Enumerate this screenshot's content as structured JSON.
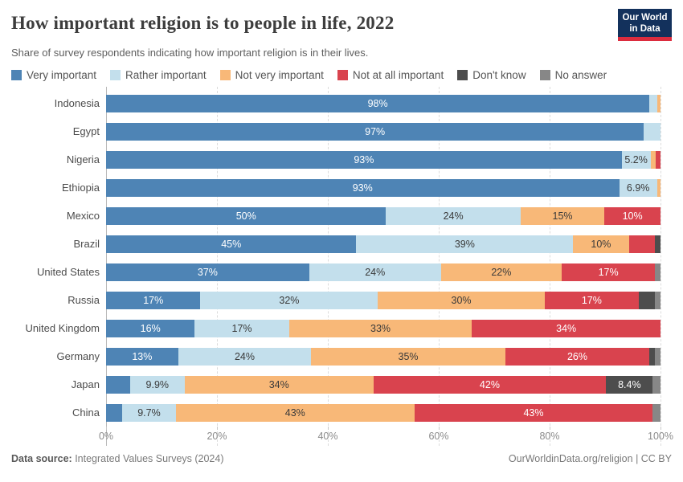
{
  "header": {
    "title": "How important religion is to people in life, 2022",
    "subtitle": "Share of survey respondents indicating how important religion is in their lives.",
    "logo_line1": "Our World",
    "logo_line2": "in Data",
    "logo_bg_color": "#13315c",
    "logo_stripe_color": "#dc2c3e"
  },
  "chart_data": {
    "type": "bar",
    "stacked": true,
    "orientation": "horizontal",
    "unit": "%",
    "xlim": [
      0,
      100
    ],
    "grid": "dashed-vertical",
    "legend_position": "top",
    "x_ticks": [
      "0%",
      "20%",
      "40%",
      "60%",
      "80%",
      "100%"
    ],
    "x_tick_values": [
      0,
      20,
      40,
      60,
      80,
      100
    ],
    "series": [
      {
        "name": "Very important",
        "color": "#4e84b5",
        "label_text_color": "#ffffff"
      },
      {
        "name": "Rather important",
        "color": "#c3dfec",
        "label_text_color": "#3a3a3a"
      },
      {
        "name": "Not very important",
        "color": "#f8b878",
        "label_text_color": "#3a3a3a"
      },
      {
        "name": "Not at all important",
        "color": "#d9434e",
        "label_text_color": "#ffffff"
      },
      {
        "name": "Don't know",
        "color": "#4d4d4d",
        "label_text_color": "#ffffff"
      },
      {
        "name": "No answer",
        "color": "#878787",
        "label_text_color": "#ffffff"
      }
    ],
    "rows": [
      {
        "country": "Indonesia",
        "values": [
          98,
          1.4,
          0.6,
          0,
          0,
          0
        ],
        "labels": [
          "98%",
          "",
          "",
          "",
          "",
          ""
        ]
      },
      {
        "country": "Egypt",
        "values": [
          97,
          3,
          0,
          0,
          0,
          0
        ],
        "labels": [
          "97%",
          "",
          "",
          "",
          "",
          ""
        ]
      },
      {
        "country": "Nigeria",
        "values": [
          93,
          5.2,
          1.0,
          0.8,
          0,
          0
        ],
        "labels": [
          "93%",
          "5.2%",
          "",
          "",
          "",
          ""
        ]
      },
      {
        "country": "Ethiopia",
        "values": [
          93,
          6.9,
          0.6,
          0,
          0,
          0
        ],
        "labels": [
          "93%",
          "6.9%",
          "",
          "",
          "",
          ""
        ]
      },
      {
        "country": "Mexico",
        "values": [
          50,
          24,
          15,
          10,
          0,
          0
        ],
        "labels": [
          "50%",
          "24%",
          "15%",
          "10%",
          "",
          ""
        ]
      },
      {
        "country": "Brazil",
        "values": [
          45,
          39,
          10,
          4.7,
          1.0,
          0
        ],
        "labels": [
          "45%",
          "39%",
          "10%",
          "",
          "",
          ""
        ]
      },
      {
        "country": "United States",
        "values": [
          37,
          24,
          22,
          17,
          0,
          1.0
        ],
        "labels": [
          "37%",
          "24%",
          "22%",
          "17%",
          "",
          ""
        ]
      },
      {
        "country": "Russia",
        "values": [
          17,
          32,
          30,
          17,
          2.9,
          1.0
        ],
        "labels": [
          "17%",
          "32%",
          "30%",
          "17%",
          "",
          ""
        ]
      },
      {
        "country": "United Kingdom",
        "values": [
          16,
          17,
          33,
          34,
          0,
          0
        ],
        "labels": [
          "16%",
          "17%",
          "33%",
          "34%",
          "",
          ""
        ]
      },
      {
        "country": "Germany",
        "values": [
          13,
          24,
          35,
          26,
          1.0,
          1.0
        ],
        "labels": [
          "13%",
          "24%",
          "35%",
          "26%",
          "",
          ""
        ]
      },
      {
        "country": "Japan",
        "values": [
          4.3,
          9.9,
          34,
          42,
          8.4,
          1.4
        ],
        "labels": [
          "",
          "9.9%",
          "34%",
          "42%",
          "8.4%",
          ""
        ]
      },
      {
        "country": "China",
        "values": [
          2.9,
          9.7,
          43,
          43,
          0,
          1.4
        ],
        "labels": [
          "",
          "9.7%",
          "43%",
          "43%",
          "",
          ""
        ]
      }
    ]
  },
  "footer": {
    "source_label": "Data source:",
    "source_text": " Integrated Values Surveys (2024)",
    "credit": "OurWorldinData.org/religion | CC BY"
  }
}
